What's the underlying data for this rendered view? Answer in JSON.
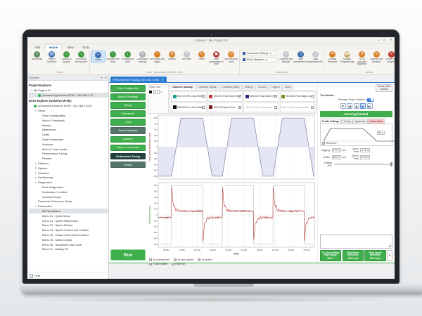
{
  "window": {
    "title": "Connect - My Project 24",
    "minimize_glyph": "–",
    "maximize_glyph": "▢",
    "close_glyph": "✕"
  },
  "icons": {
    "chevron_expanded": "▾",
    "chevron_collapsed": "▸",
    "dropdown": "▾",
    "panel_collapse": "▾",
    "panel_close": "✕",
    "help_glyph": "?",
    "tab_close": "✕",
    "record_dot": "",
    "add_parameter": "+"
  },
  "menu": {
    "tabs": [
      "File",
      "Home",
      "View",
      "Tools"
    ],
    "active_index": 1
  },
  "ribbon": {
    "groups": [
      {
        "label": "Project",
        "buttons": [
          {
            "label": "Add drives",
            "icon": "add-drive-icon",
            "glyph": "+",
            "color": "#5f8f62"
          },
          {
            "label": "Project Overview",
            "icon": "project-overview-icon",
            "glyph": "▤",
            "color": "#4472b8"
          },
          {
            "label": "Upload to project",
            "icon": "upload-arrow-icon",
            "glyph": "↑",
            "color": "#3f9d44"
          },
          {
            "label": "Download from project",
            "icon": "download-arrow-icon",
            "glyph": "↓",
            "color": "#3f9d44"
          }
        ]
      },
      {
        "label": "Drive - (Unnamed) (192.168.1.100)",
        "buttons": [
          {
            "label": "Online",
            "icon": "online-icon",
            "glyph": "⌁",
            "color": "#3f6fb0",
            "active": true
          },
          {
            "label": "Upload from drive",
            "icon": "upload-arrow-icon",
            "glyph": "↑",
            "color": "#3f9d44"
          },
          {
            "label": "Download to drive",
            "icon": "download-arrow-icon",
            "glyph": "↓",
            "color": "#3f9d44"
          },
          {
            "label": "Connection settings",
            "icon": "connection-icon",
            "glyph": "⚙",
            "color": "#a7adb3"
          },
          {
            "label": "Set mode and region",
            "icon": "globe-icon",
            "glyph": "◔",
            "color": "#d9822b"
          },
          {
            "label": "Default",
            "icon": "default-icon",
            "glyph": "D",
            "color": "#d9822b"
          },
          {
            "label": "Set node",
            "icon": "node-icon",
            "glyph": "#",
            "color": "#c3c8cd"
          },
          {
            "label": "Reset",
            "icon": "reset-icon",
            "glyph": "↻",
            "color": "#d9822b"
          },
          {
            "label": "Save parameters in drive",
            "icon": "save-icon",
            "glyph": "▣",
            "color": "#b23a3a"
          },
          {
            "label": "Set real-time clock",
            "icon": "clock-icon",
            "glyph": "◷",
            "color": "#d9822b"
          }
        ]
      },
      {
        "label": "Parameters",
        "menus": [
          {
            "label": "Parameter Settings"
          },
          {
            "label": "Block Diagrams"
          }
        ],
        "buttons": [
          {
            "label": "Compare with defaults",
            "icon": "compare-icon",
            "glyph": "≍",
            "color": "#c3c8cd"
          },
          {
            "label": "New parameter file",
            "icon": "new-file-icon",
            "glyph": "▯",
            "color": "#3f6fb0"
          },
          {
            "label": "Load parameter file",
            "icon": "open-file-icon",
            "glyph": "▱",
            "color": "#c3c8cd"
          }
        ]
      },
      {
        "label": "Actions",
        "buttons": [
          {
            "label": "Change Firmware",
            "icon": "firmware-icon",
            "glyph": "✦",
            "color": "#d9822b"
          },
          {
            "label": "Keypad Programming",
            "icon": "keypad-icon",
            "glyph": "⌨",
            "color": "#c8a96a"
          },
          {
            "label": "SP to onboard Migration",
            "icon": "migration-icon",
            "glyph": "0",
            "color": "#d9822b"
          },
          {
            "label": "Display user program",
            "icon": "display-program-icon",
            "glyph": "0",
            "color": "#d9822b"
          },
          {
            "label": "Delete user program",
            "icon": "delete-icon",
            "glyph": "✕",
            "color": "#c0392b"
          },
          {
            "label": "SD Card Manager",
            "icon": "sd-card-icon",
            "glyph": "❶",
            "color": "#3f6fb0"
          }
        ]
      }
    ]
  },
  "explorer": {
    "panel_title": "Explorer",
    "project_header": "Project Explorer:",
    "project_tree": [
      {
        "label": "My Project 24",
        "level": 0,
        "expand": "open"
      },
      {
        "label": "(Unnamed) (Unidrive M700 - 192.168.1.10",
        "level": 1,
        "icon": "status-online",
        "selected": true
      }
    ],
    "drive_header": "Drive Explorer (Unidrive M700):",
    "drive_tree": [
      {
        "label": "(Unnamed) (Unidrive M700 - 192.168.1.100)",
        "level": 0,
        "icon": "status-online"
      },
      {
        "label": "Setup",
        "level": 1,
        "expand": "open"
      },
      {
        "label": "Drive Configuration",
        "level": 2
      },
      {
        "label": "Motor & Feedback",
        "level": 2
      },
      {
        "label": "Ramps",
        "level": 2
      },
      {
        "label": "References",
        "level": 2
      },
      {
        "label": "Limits",
        "level": 2
      },
      {
        "label": "Save Parameters",
        "level": 2
      },
      {
        "label": "Autotune",
        "level": 2
      },
      {
        "label": "Motor & Load Inertia",
        "level": 2
      },
      {
        "label": "Performance Tuning",
        "level": 2
      },
      {
        "label": "Finalize",
        "level": 2
      },
      {
        "label": "Ethernet",
        "level": 1,
        "expand": "closed"
      },
      {
        "label": "Options",
        "level": 1,
        "expand": "closed"
      },
      {
        "label": "Solutions",
        "level": 1,
        "expand": "closed"
      },
      {
        "label": "Oscilloscope",
        "level": 1,
        "expand": "closed"
      },
      {
        "label": "Diagnostics",
        "level": 1,
        "expand": "open"
      },
      {
        "label": "Drive Diagnostics",
        "level": 2
      },
      {
        "label": "Destination Conflicts",
        "level": 2
      },
      {
        "label": "Onboard Scope",
        "level": 2
      },
      {
        "label": "Parameter Reference Guide",
        "level": 1
      },
      {
        "label": "Parameters",
        "level": 1,
        "expand": "open"
      },
      {
        "label": "All Parameters",
        "level": 2,
        "selected": true
      },
      {
        "label": "Menu 00 - Quick Setup",
        "level": 2
      },
      {
        "label": "Menu 01 - Speed References",
        "level": 2
      },
      {
        "label": "Menu 02 - Speed Ramps",
        "level": 2
      },
      {
        "label": "Menu 03 - Speed Control and Position",
        "level": 2
      },
      {
        "label": "Menu 04 - Torque and Current Control",
        "level": 2
      },
      {
        "label": "Menu 05 - Motor Control",
        "level": 2
      },
      {
        "label": "Menu 06 - Sequencer and Clock",
        "level": 2
      },
      {
        "label": "Menu 07 - Analog I/O",
        "level": 2
      }
    ],
    "help_label": "Help"
  },
  "dashboard": {
    "tab": {
      "label": "Performance Tuning (192.168.1.100)"
    },
    "nav_buttons": [
      {
        "label": "Drive Configuration"
      },
      {
        "label": "Motor & Feedback"
      },
      {
        "label": "Ramps"
      },
      {
        "label": "References"
      },
      {
        "label": "Limits"
      },
      {
        "label": "Save Parameters",
        "style": "dark"
      },
      {
        "label": "Autotune"
      },
      {
        "label": "Motor & Load Inertia"
      },
      {
        "label": "Performance Tuning",
        "style": "active"
      },
      {
        "label": "Finalize",
        "style": "dark"
      }
    ],
    "run_label": "Run"
  },
  "oscilloscope": {
    "time_div_label": "Time / Div:",
    "time_div_value": "1",
    "time_div_unit": "s",
    "tabs": [
      "Channels (Analog)",
      "Channels (Digital)",
      "Channels (Math)",
      "Settings",
      "Cursors",
      "Triggers",
      "Notes"
    ],
    "active_tab_index": 0,
    "channels": [
      {
        "color": "#17a08d",
        "label": "M01.003 Pre-ramp Reference",
        "checked": true
      },
      {
        "color": "#bf3a3a",
        "label": "M02.001 Post Ramp Reference",
        "checked": true
      },
      {
        "color": "#232a72",
        "label": "M03.002 Final Speed Reference",
        "checked": true
      },
      {
        "color": "#7f8c1f",
        "label": "M04.020 Percentage Load",
        "checked": false
      },
      {
        "color": "#0a0a0a",
        "label": "M05.005 D.c. Bus Voltage",
        "checked": false
      },
      {
        "color": "#7a1f1f",
        "label": "M03.003 Speed Error",
        "checked": true
      },
      {
        "color": null,
        "label": "Click to select a parameter",
        "checked": false
      },
      {
        "color": null,
        "label": "Click to select a parameter",
        "checked": false
      }
    ],
    "status_checks": {
      "row1": [
        {
          "label": "At current limit",
          "checked": true
        },
        {
          "label": "At zero speed",
          "checked": true
        },
        {
          "label": "At speed",
          "checked": true
        }
      ],
      "row2": [
        {
          "label": "Final enable",
          "checked": true
        },
        {
          "label": "Final run",
          "checked": true
        }
      ]
    }
  },
  "test_panel": {
    "restore_button_line1": "Restore Axis",
    "restore_button_line2": "Tracking",
    "test_mode_label": "Test Mode:",
    "release_label": "Release Drive Control",
    "toggle_on": true,
    "transport": [
      {
        "glyph": "■",
        "name": "stop-button"
      },
      {
        "glyph": "|◀",
        "name": "skip-to-start-button"
      },
      {
        "glyph": "◀",
        "name": "run-reverse-button"
      },
      {
        "glyph": "▶",
        "name": "run-forward-button",
        "active": true
      },
      {
        "glyph": "▶|",
        "name": "skip-to-end-button"
      }
    ],
    "status": "Running forward",
    "tabs": [
      {
        "label": "Profile Settings",
        "style": "act"
      },
      {
        "label": "Tuning"
      },
      {
        "label": "Application"
      },
      {
        "label": "Motor Scale",
        "style": "alert"
      }
    ],
    "profile_spin_value": "50",
    "reverse_label": "Reverse?",
    "reverse_checked": true,
    "fields_rows": [
      [
        {
          "label": "Jogging:",
          "value": "170",
          "unit": "rpm"
        },
        {
          "label": "Accel. Time:",
          "value": "1.70",
          "unit": ""
        }
      ],
      [
        {
          "label": "Profile:",
          "value": "500",
          "unit": "rpm"
        },
        {
          "label": "Decel. Time:",
          "value": "0.20",
          "unit": ""
        }
      ]
    ],
    "scaling_label": "Scaling (%):",
    "scaling_value": 100,
    "param_buttons": [
      {
        "title": "D.c. Bus Voltage High Range",
        "value": "648 V"
      },
      {
        "title": "Post Ramp Reference",
        "value": "706.0 rpm"
      },
      {
        "title": "Final Speed Reference",
        "value": "706.0 rpm"
      }
    ],
    "add_param_glyph": "+"
  },
  "chart_data": [
    {
      "type": "line",
      "title": "Oscilloscope top trace",
      "ylabel": "Final Speed Reference (rpm)",
      "ylabel_color": "#8a2525",
      "xlim": [
        15.5,
        25.5
      ],
      "ylim": [
        -550,
        550
      ],
      "yticks": [
        500,
        400,
        300,
        200,
        100,
        0,
        -100,
        -200,
        -300,
        -400,
        -500
      ],
      "grid": true,
      "legend_position": "none",
      "series": [
        {
          "name": "Final Speed Reference",
          "color": "#8f90ad",
          "fill": "#dfe0f3",
          "fill_to_zero": true,
          "points": [
            [
              15.5,
              -500
            ],
            [
              16.35,
              -500
            ],
            [
              16.95,
              500
            ],
            [
              18.35,
              500
            ],
            [
              18.95,
              -500
            ],
            [
              19.6,
              -500
            ],
            [
              20.2,
              500
            ],
            [
              21.6,
              500
            ],
            [
              22.2,
              -500
            ],
            [
              22.85,
              -500
            ],
            [
              23.45,
              500
            ],
            [
              24.85,
              500
            ],
            [
              25.45,
              -500
            ],
            [
              25.5,
              -500
            ]
          ]
        }
      ]
    },
    {
      "type": "line",
      "title": "Oscilloscope bottom trace",
      "ylabel": "Speed Error (rpm)",
      "ylabel_color": "#2e7d32",
      "xlabel": "Time",
      "xlim": [
        15.5,
        25.5
      ],
      "ylim": [
        -550,
        550
      ],
      "yticks": [
        500,
        400,
        300,
        200,
        100,
        0,
        -100,
        -200,
        -300,
        -400,
        -500
      ],
      "xticks": [
        {
          "t": 16,
          "label": "16.00s"
        },
        {
          "t": 17,
          "label": "17.00s"
        },
        {
          "t": 18,
          "label": "18.00s"
        },
        {
          "t": 19,
          "label": "19.00s"
        },
        {
          "t": 20,
          "label": "20.00s"
        },
        {
          "t": 21,
          "label": "21.00s"
        },
        {
          "t": 22,
          "label": "22.00s"
        },
        {
          "t": 23,
          "label": "23.00s"
        },
        {
          "t": 24,
          "label": "24.00s"
        },
        {
          "t": 25,
          "label": "25.00s"
        }
      ],
      "grid": true,
      "series": [
        {
          "name": "Pre-ramp Reference (square)",
          "type": "square",
          "color": "#b4b4b4",
          "start_level": -500,
          "edges": [
            {
              "t": 16.35,
              "level": 500
            },
            {
              "t": 18.35,
              "level": -500
            },
            {
              "t": 19.6,
              "level": 500
            },
            {
              "t": 21.6,
              "level": -500
            },
            {
              "t": 22.85,
              "level": 500
            },
            {
              "t": 24.85,
              "level": -500
            }
          ]
        },
        {
          "name": "Speed Error",
          "type": "error",
          "color": "#b13434",
          "high_level": 65,
          "low_level": -45,
          "spike": 440,
          "noise": 14
        }
      ]
    }
  ]
}
